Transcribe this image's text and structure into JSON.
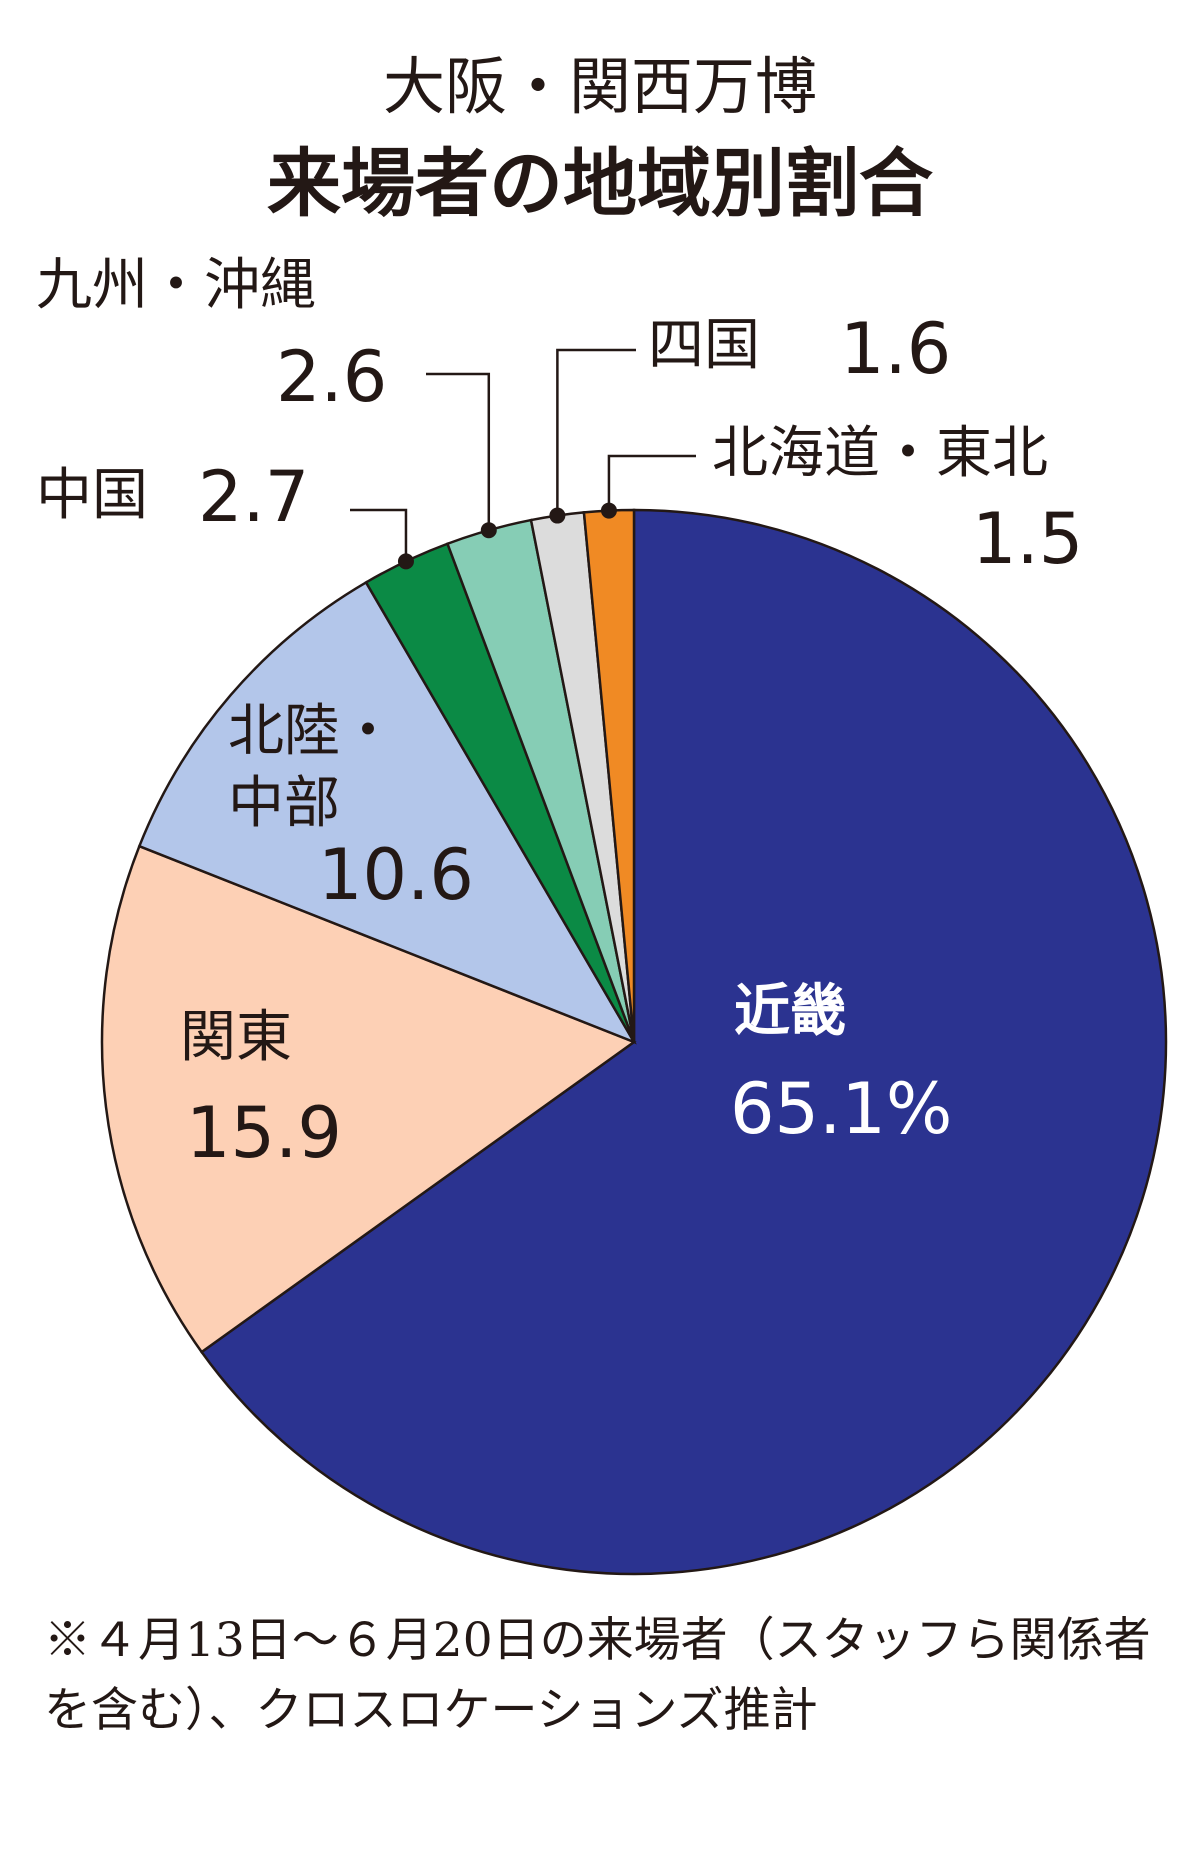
{
  "chart_data": {
    "type": "pie",
    "title": "大阪・関西万博",
    "subtitle": "来場者の地域別割合",
    "categories": [
      "近畿",
      "関東",
      "北陸・中部",
      "中国",
      "九州・沖縄",
      "四国",
      "北海道・東北"
    ],
    "values": [
      65.1,
      15.9,
      10.6,
      2.7,
      2.6,
      1.6,
      1.5
    ],
    "value_labels": [
      "65.1%",
      "15.9",
      "10.6",
      "2.7",
      "2.6",
      "1.6",
      "1.5"
    ],
    "colors": [
      "#2b3390",
      "#fdd0b5",
      "#b3c6ea",
      "#0b8a45",
      "#86cdb5",
      "#dcdcdc",
      "#f08a24"
    ],
    "note": "※４月13日～６月20日の来場者（スタッフら関係者を含む）、クロスロケーションズ推計"
  }
}
